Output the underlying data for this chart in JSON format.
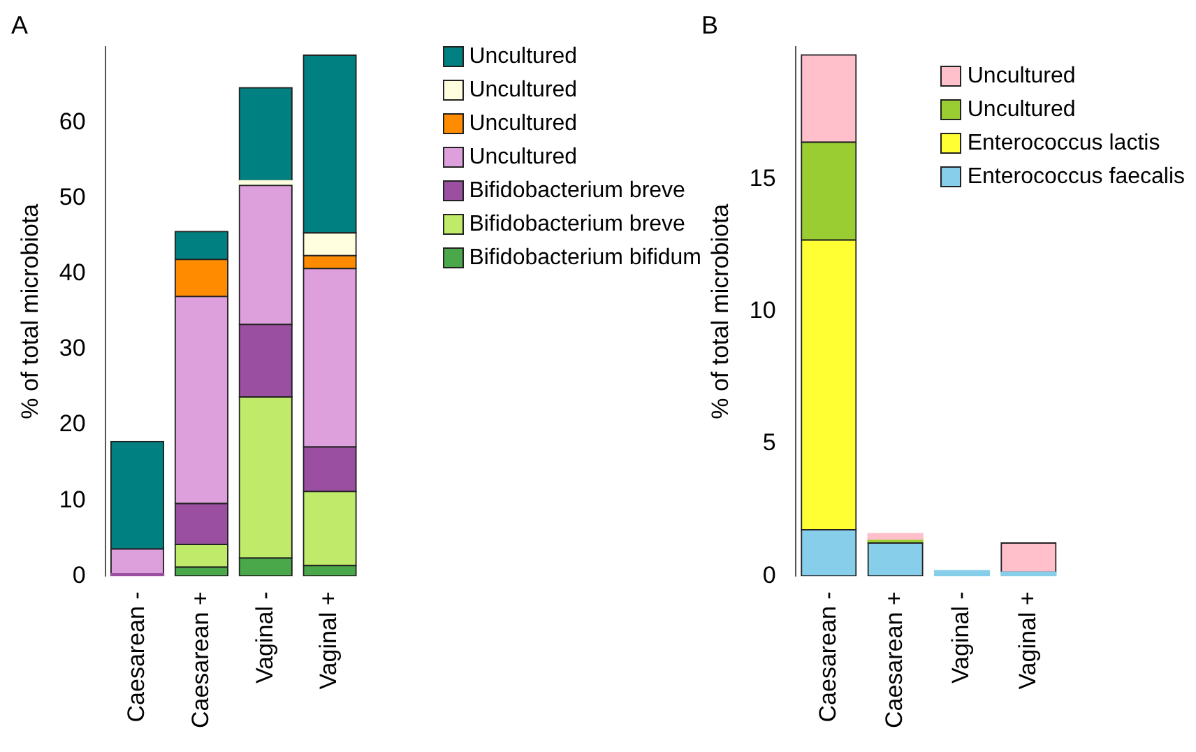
{
  "chart_data": [
    {
      "type": "bar",
      "title": "A",
      "ylabel": "% of total microbiota",
      "stacked": true,
      "legend": "top right",
      "grid": false,
      "categories": [
        "Caesarean -",
        "Caesarean +",
        "Vaginal -",
        "Vaginal +"
      ],
      "ylim": [
        0,
        70
      ],
      "yticks": [
        0,
        10,
        20,
        30,
        40,
        50,
        60
      ],
      "series": [
        {
          "name": "Bifidobacterium bifidum",
          "color": "#4aa84a",
          "values": [
            0,
            1.2,
            2.4,
            1.4
          ]
        },
        {
          "name": "Bifidobacterium breve",
          "color": "#c0ea6a",
          "values": [
            0,
            3.0,
            21.3,
            9.8
          ]
        },
        {
          "name": "Bifidobacterium breve",
          "color": "#9a4fa0",
          "values": [
            0.3,
            5.4,
            9.6,
            5.9
          ]
        },
        {
          "name": "Uncultured",
          "color": "#dda0dd",
          "values": [
            3.3,
            27.4,
            18.4,
            23.6
          ]
        },
        {
          "name": "Uncultured",
          "color": "#ff8c00",
          "values": [
            0,
            4.9,
            0,
            1.7
          ]
        },
        {
          "name": "Uncultured",
          "color": "#ffffe0",
          "values": [
            0,
            0,
            0.6,
            3.0
          ]
        },
        {
          "name": "Uncultured",
          "color": "#008080",
          "values": [
            14.2,
            3.7,
            12.3,
            23.5
          ]
        }
      ]
    },
    {
      "type": "bar",
      "title": "B",
      "ylabel": "% of total microbiota",
      "stacked": true,
      "legend": "top right",
      "grid": false,
      "categories": [
        "Caesarean -",
        "Caesarean +",
        "Vaginal -",
        "Vaginal +"
      ],
      "ylim": [
        0,
        20
      ],
      "yticks": [
        0,
        5,
        10,
        15
      ],
      "series": [
        {
          "name": "Enterococcus faecalis",
          "color": "#87ceeb",
          "values": [
            1.75,
            1.25,
            0.2,
            0.15
          ]
        },
        {
          "name": "Enterococcus lactis",
          "color": "#ffff33",
          "values": [
            10.95,
            0,
            0,
            0
          ]
        },
        {
          "name": "Uncultured",
          "color": "#9acd32",
          "values": [
            3.7,
            0.1,
            0,
            0
          ]
        },
        {
          "name": "Uncultured",
          "color": "#ffc0cb",
          "values": [
            3.3,
            0.25,
            0,
            1.1
          ]
        }
      ]
    }
  ]
}
